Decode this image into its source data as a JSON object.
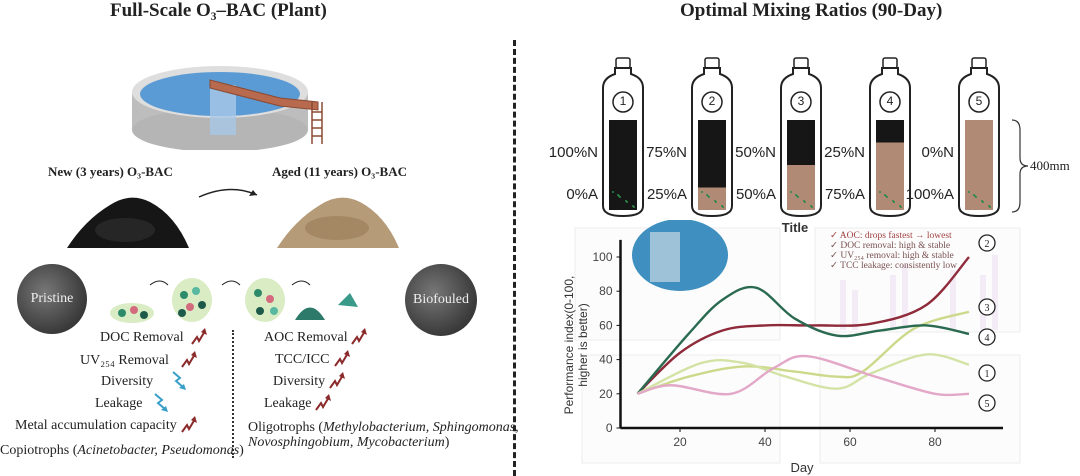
{
  "left": {
    "title": "Full-Scale O₃–BAC (Plant)",
    "new_label": "New (3 years)  O₃-BAC",
    "aged_label": "Aged (11 years) O₃-BAC",
    "pristine": "Pristine",
    "biofouled": "Biofouled",
    "new_effects": [
      {
        "label": "DOC Removal",
        "trend": "up",
        "icon": "trend-up-icon",
        "color": "#8b2a2a"
      },
      {
        "label": "UV₂₅₄ Removal",
        "trend": "up",
        "icon": "trend-up-icon",
        "color": "#8b2a2a"
      },
      {
        "label": "Diversity",
        "trend": "down",
        "icon": "trend-down-icon",
        "color": "#3a9fc8"
      },
      {
        "label": "Leakage",
        "trend": "down",
        "icon": "trend-down-icon",
        "color": "#3a9fc8"
      },
      {
        "label": "Metal accumulation capacity",
        "trend": "up",
        "icon": "trend-up-icon",
        "color": "#8b2a2a"
      }
    ],
    "copiotrophs": {
      "prefix": "Copiotrophs (",
      "genera": "Acinetobacter, Pseudomonas",
      "suffix": ")"
    },
    "aged_effects": [
      {
        "label": "AOC Removal",
        "trend": "up",
        "icon": "trend-up-icon",
        "color": "#8b2a2a"
      },
      {
        "label": "TCC/ICC",
        "trend": "up",
        "icon": "trend-up-icon",
        "color": "#8b2a2a"
      },
      {
        "label": "Diversity",
        "trend": "up",
        "icon": "trend-up-icon",
        "color": "#8b2a2a"
      },
      {
        "label": "Leakage",
        "trend": "up",
        "icon": "trend-up-icon",
        "color": "#8b2a2a"
      }
    ],
    "oligotrophs": {
      "prefix": "Oligotrophs (",
      "genera1": "Methylobacterium, Sphingomonas,",
      "genera2": "Novosphingobium, Mycobacterium",
      "suffix": ")"
    }
  },
  "right": {
    "title": "Optimal Mixing Ratios (90-Day)",
    "height_label": "400mm",
    "colors": {
      "new_carbon": "#161616",
      "aged_carbon": "#b08a74"
    },
    "columns": [
      {
        "num": "1",
        "n": "100%N",
        "a": "0%A",
        "n_frac": 1.0
      },
      {
        "num": "2",
        "n": "75%N",
        "a": "25%A",
        "n_frac": 0.75
      },
      {
        "num": "3",
        "n": "50%N",
        "a": "50%A",
        "n_frac": 0.5
      },
      {
        "num": "4",
        "n": "25%N",
        "a": "75%A",
        "n_frac": 0.25
      },
      {
        "num": "5",
        "n": "0%N",
        "a": "100%A",
        "n_frac": 0.0
      }
    ]
  },
  "chart_data": {
    "type": "line",
    "title": "Title",
    "xlabel": "Day",
    "ylabel": "Performance index(0-100, higher is better)",
    "xticks": [
      20,
      40,
      60,
      80
    ],
    "yticks": [
      0,
      20,
      40,
      60,
      80,
      100
    ],
    "xlim": [
      6,
      96
    ],
    "ylim": [
      0,
      100
    ],
    "annotations": [
      "✓ AOC: drops fastest → lowest",
      "✓ DOC removal: high & stable",
      "✓ UV₂₅₄ removal: high & stable",
      "✓ TCC leakage: consistently low"
    ],
    "series": [
      {
        "name": "2",
        "color": "#8e2a3a",
        "x": [
          10,
          20,
          30,
          40,
          52,
          65,
          78,
          88
        ],
        "y": [
          20,
          44,
          57,
          60,
          60,
          61,
          72,
          100
        ]
      },
      {
        "name": "3",
        "color": "#cdd98a",
        "x": [
          10,
          22,
          35,
          47,
          57,
          63,
          75,
          88
        ],
        "y": [
          20,
          30,
          36,
          33,
          30,
          33,
          58,
          68
        ]
      },
      {
        "name": "4",
        "color": "#2a6a50",
        "x": [
          10,
          22,
          30,
          38,
          47,
          57,
          67,
          78,
          88
        ],
        "y": [
          20,
          55,
          75,
          82,
          64,
          54,
          57,
          60,
          55
        ]
      },
      {
        "name": "1",
        "color": "#d3e3a5",
        "x": [
          10,
          25,
          35,
          45,
          57,
          65,
          78,
          88
        ],
        "y": [
          20,
          38,
          38,
          30,
          23,
          32,
          43,
          37
        ]
      },
      {
        "name": "5",
        "color": "#e3a8c8",
        "x": [
          10,
          18,
          32,
          42,
          50,
          66,
          80,
          88
        ],
        "y": [
          20,
          25,
          20,
          35,
          42,
          30,
          20,
          20
        ]
      }
    ]
  }
}
